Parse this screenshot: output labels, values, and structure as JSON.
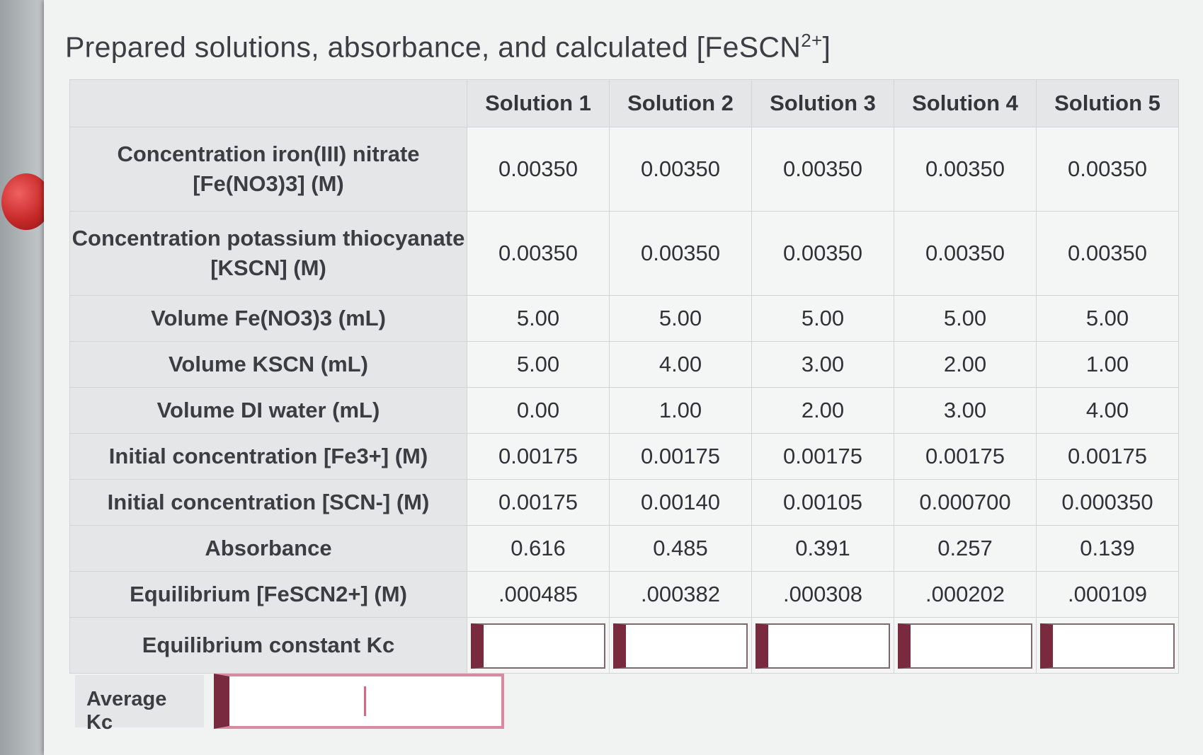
{
  "title": {
    "text": "Prepared solutions, absorbance, and calculated [FeSCN",
    "sup": "2+",
    "close": "]"
  },
  "table": {
    "columns": [
      "Solution 1",
      "Solution 2",
      "Solution 3",
      "Solution 4",
      "Solution 5"
    ],
    "rows": [
      {
        "label": "Concentration iron(III) nitrate",
        "label2": "[Fe(NO3)3] (M)",
        "values": [
          "0.00350",
          "0.00350",
          "0.00350",
          "0.00350",
          "0.00350"
        ]
      },
      {
        "label": "Concentration potassium thiocyanate",
        "label2": "[KSCN] (M)",
        "values": [
          "0.00350",
          "0.00350",
          "0.00350",
          "0.00350",
          "0.00350"
        ]
      },
      {
        "label": "Volume Fe(NO3)3 (mL)",
        "values": [
          "5.00",
          "5.00",
          "5.00",
          "5.00",
          "5.00"
        ]
      },
      {
        "label": "Volume KSCN (mL)",
        "values": [
          "5.00",
          "4.00",
          "3.00",
          "2.00",
          "1.00"
        ]
      },
      {
        "label": "Volume DI water (mL)",
        "values": [
          "0.00",
          "1.00",
          "2.00",
          "3.00",
          "4.00"
        ]
      },
      {
        "label": "Initial concentration [Fe3+] (M)",
        "values": [
          "0.00175",
          "0.00175",
          "0.00175",
          "0.00175",
          "0.00175"
        ]
      },
      {
        "label": "Initial concentration [SCN-] (M)",
        "values": [
          "0.00175",
          "0.00140",
          "0.00105",
          "0.000700",
          "0.000350"
        ]
      },
      {
        "label": "Absorbance",
        "values": [
          "0.616",
          "0.485",
          "0.391",
          "0.257",
          "0.139"
        ]
      },
      {
        "label": "Equilibrium [FeSCN2+] (M)",
        "values": [
          ".000485",
          ".000382",
          ".000308",
          ".000202",
          ".000109"
        ]
      }
    ],
    "kc_label": "Equilibrium constant Kc",
    "kc_values": [
      "",
      "",
      "",
      "",
      ""
    ]
  },
  "average": {
    "label": "Average Kc",
    "value": ""
  },
  "colors": {
    "input_accent": "#7a2a3e",
    "input_focus_border": "#d88aa0",
    "header_bg": "#e5e6e7",
    "cell_bg": "#f4f5f5"
  }
}
